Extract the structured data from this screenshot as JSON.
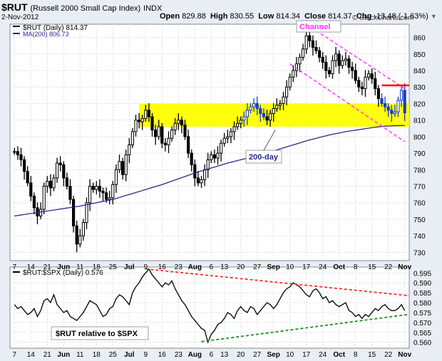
{
  "header": {
    "symbol": "$RUT",
    "description": "(Russell 2000 Small Cap Index)",
    "exchange": "INDX",
    "date": "2-Nov-2012",
    "open_label": "Open",
    "open": "829.88",
    "high_label": "High",
    "high": "830.55",
    "low_label": "Low",
    "low": "814.34",
    "close_label": "Close",
    "close": "814.37",
    "chg_label": "Chg",
    "chg": "-13.48 (-1.63%)",
    "brand": "© StockCharts.com"
  },
  "legend": {
    "price": "$RUT (Daily) 814.37",
    "ma": "MA(200) 806.73",
    "ratio": "$RUT:$SPX (Daily) 0.576"
  },
  "annotations": {
    "channel": "Channel",
    "ma200": "200-day",
    "relative": "$RUT relative to $SPX"
  },
  "colors": {
    "up": "#000000",
    "down": "#000000",
    "highlight_bars": "#1a3ccc",
    "ma": "#2a2a8a",
    "channel": "#ff33ff",
    "zone": "#ffff00",
    "resistance": "#ff0000",
    "red_trend": "#ff2a2a",
    "green_trend": "#228b22"
  },
  "chart_data": [
    {
      "type": "candlestick",
      "title": "$RUT (Daily) 814.37",
      "x_ticks": [
        "7",
        "14",
        "21",
        "Jun",
        "11",
        "18",
        "25",
        "Jul",
        "9",
        "16",
        "23",
        "Aug",
        "6",
        "13",
        "20",
        "27",
        "Sep",
        "10",
        "17",
        "24",
        "Oct",
        "8",
        "15",
        "22",
        "Nov"
      ],
      "ylim": [
        725,
        868
      ],
      "y_ticks": [
        730,
        740,
        750,
        760,
        770,
        780,
        790,
        800,
        810,
        820,
        830,
        840,
        850,
        860
      ],
      "closes": [
        791,
        789,
        786,
        779,
        772,
        764,
        757,
        752,
        756,
        770,
        773,
        769,
        775,
        784,
        783,
        775,
        770,
        762,
        746,
        735,
        740,
        748,
        760,
        770,
        768,
        770,
        767,
        766,
        762,
        763,
        771,
        780,
        785,
        777,
        789,
        795,
        803,
        810,
        809,
        811,
        816,
        812,
        804,
        800,
        806,
        796,
        795,
        799,
        804,
        808,
        810,
        807,
        800,
        790,
        783,
        775,
        772,
        774,
        780,
        786,
        789,
        787,
        790,
        796,
        799,
        800,
        803,
        806,
        808,
        810,
        812,
        816,
        818,
        820,
        817,
        814,
        812,
        810,
        814,
        817,
        819,
        820,
        824,
        830,
        836,
        840,
        844,
        848,
        853,
        861,
        858,
        854,
        852,
        848,
        845,
        840,
        838,
        846,
        850,
        843,
        846,
        847,
        842,
        840,
        834,
        830,
        829,
        836,
        838,
        835,
        829,
        823,
        820,
        818,
        816,
        814,
        815,
        822,
        828,
        814.37
      ],
      "ma200": [
        752,
        752.3,
        752.6,
        752.9,
        753.2,
        753.5,
        753.8,
        754.1,
        754.4,
        754.7,
        755,
        755.3,
        755.6,
        755.9,
        756.2,
        756.5,
        756.8,
        757.1,
        757.4,
        757.7,
        758,
        758.4,
        758.8,
        759.2,
        759.6,
        760,
        760.4,
        760.8,
        761.2,
        761.6,
        762,
        762.6,
        763.2,
        763.8,
        764.4,
        765,
        765.6,
        766.2,
        766.8,
        767.4,
        768,
        768.6,
        769.2,
        769.8,
        770.4,
        771,
        771.7,
        772.4,
        773.1,
        773.8,
        774.5,
        775.2,
        775.9,
        776.6,
        777.3,
        778,
        778.6,
        779.2,
        779.8,
        780.4,
        781,
        781.6,
        782.2,
        782.8,
        783.4,
        784,
        784.5,
        785,
        785.5,
        786,
        786.5,
        787,
        787.5,
        788,
        788.5,
        789,
        789.6,
        790.2,
        790.8,
        791.4,
        792,
        792.6,
        793.2,
        793.8,
        794.4,
        795,
        795.6,
        796.2,
        796.8,
        797.4,
        798,
        798.5,
        799,
        799.5,
        800,
        800.5,
        801,
        801.4,
        801.8,
        802.2,
        802.6,
        803,
        803.3,
        803.6,
        803.9,
        804.2,
        804.5,
        804.8,
        805.1,
        805.4,
        805.7,
        805.9,
        806.1,
        806.3,
        806.4,
        806.5,
        806.6,
        806.65,
        806.7,
        806.73
      ],
      "zone": [
        806,
        820
      ],
      "resistance": 831,
      "channel_upper": [
        [
          89,
          868
        ],
        [
          119,
          829
        ]
      ],
      "channel_lower": [
        [
          84,
          844
        ],
        [
          119,
          797
        ]
      ]
    },
    {
      "type": "line",
      "title": "$RUT:$SPX (Daily) 0.576",
      "ylim": [
        0.557,
        0.598
      ],
      "y_ticks": [
        0.56,
        0.565,
        0.57,
        0.575,
        0.58,
        0.585,
        0.59,
        0.595
      ],
      "values": [
        0.579,
        0.577,
        0.578,
        0.576,
        0.574,
        0.575,
        0.577,
        0.573,
        0.576,
        0.581,
        0.582,
        0.58,
        0.584,
        0.579,
        0.577,
        0.575,
        0.576,
        0.573,
        0.572,
        0.571,
        0.573,
        0.575,
        0.578,
        0.581,
        0.58,
        0.579,
        0.576,
        0.573,
        0.574,
        0.577,
        0.578,
        0.582,
        0.584,
        0.583,
        0.581,
        0.579,
        0.585,
        0.588,
        0.59,
        0.593,
        0.595,
        0.597,
        0.594,
        0.592,
        0.59,
        0.588,
        0.59,
        0.589,
        0.591,
        0.587,
        0.584,
        0.581,
        0.579,
        0.576,
        0.573,
        0.571,
        0.569,
        0.567,
        0.566,
        0.56,
        0.564,
        0.566,
        0.569,
        0.57,
        0.572,
        0.575,
        0.574,
        0.572,
        0.576,
        0.578,
        0.576,
        0.575,
        0.578,
        0.577,
        0.574,
        0.576,
        0.578,
        0.58,
        0.579,
        0.577,
        0.579,
        0.582,
        0.585,
        0.587,
        0.588,
        0.59,
        0.589,
        0.588,
        0.586,
        0.584,
        0.583,
        0.586,
        0.587,
        0.585,
        0.582,
        0.583,
        0.58,
        0.581,
        0.579,
        0.578,
        0.579,
        0.58,
        0.576,
        0.575,
        0.573,
        0.574,
        0.572,
        0.574,
        0.573,
        0.575,
        0.577,
        0.576,
        0.578,
        0.579,
        0.577,
        0.576,
        0.576,
        0.577,
        0.579,
        0.576
      ],
      "red_line": [
        [
          40,
          0.597
        ],
        [
          119,
          0.5835
        ]
      ],
      "green_line": [
        [
          57,
          0.5603
        ],
        [
          119,
          0.5741
        ]
      ]
    }
  ]
}
